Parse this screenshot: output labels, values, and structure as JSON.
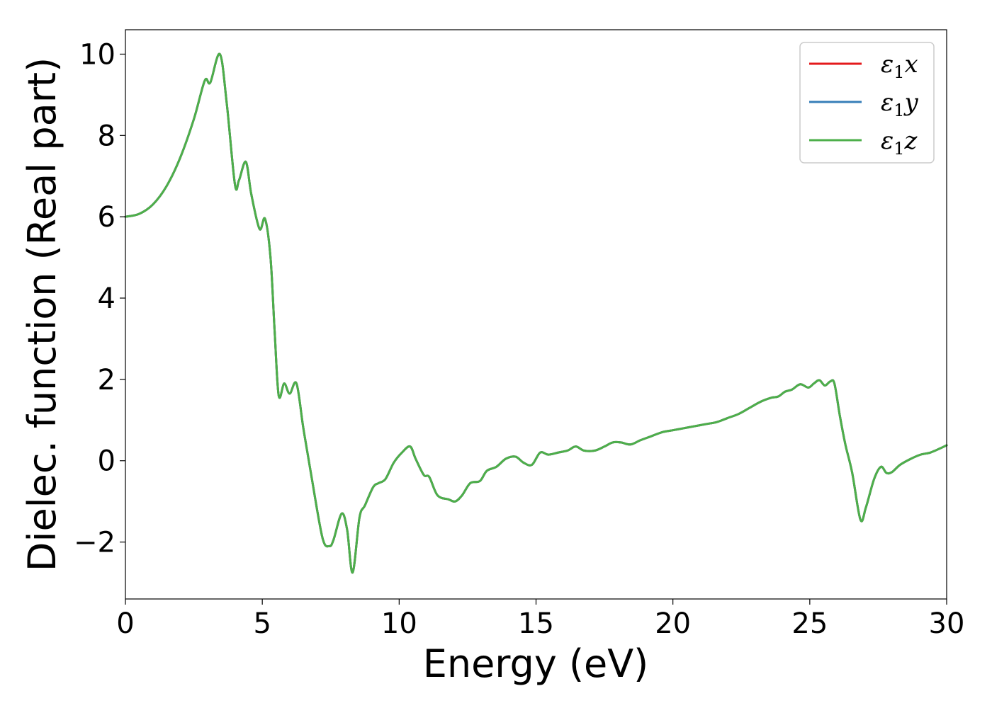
{
  "chart_data": {
    "type": "line",
    "title": "",
    "xlabel": "Energy (eV)",
    "ylabel": "Dielec. function (Real part)",
    "xlim": [
      0,
      30
    ],
    "ylim": [
      -3.4,
      10.6
    ],
    "xticks": [
      0,
      5,
      10,
      15,
      20,
      25,
      30
    ],
    "xtick_labels": [
      "0",
      "5",
      "10",
      "15",
      "20",
      "25",
      "30"
    ],
    "yticks": [
      -2,
      0,
      2,
      4,
      6,
      8,
      10
    ],
    "ytick_labels": [
      "−2",
      "0",
      "2",
      "4",
      "6",
      "8",
      "10"
    ],
    "grid": false,
    "legend_position": "top-right",
    "series": [
      {
        "name": "ε1x",
        "legend_base": "ε",
        "legend_sub": "1",
        "legend_tail": "x",
        "color": "#e41a1c",
        "x": [
          0,
          0.5,
          1.0,
          1.5,
          2.0,
          2.5,
          2.9,
          3.1,
          3.45,
          3.7,
          4.0,
          4.15,
          4.4,
          4.6,
          4.9,
          5.1,
          5.3,
          5.45,
          5.6,
          5.8,
          6.0,
          6.25,
          6.5,
          6.8,
          7.2,
          7.45,
          7.6,
          7.9,
          8.1,
          8.3,
          8.55,
          8.75,
          9.05,
          9.25,
          9.5,
          9.8,
          10.1,
          10.4,
          10.6,
          10.9,
          11.1,
          11.4,
          11.8,
          12.05,
          12.3,
          12.6,
          12.95,
          13.2,
          13.55,
          13.9,
          14.25,
          14.55,
          14.85,
          15.15,
          15.45,
          15.8,
          16.15,
          16.45,
          16.75,
          17.15,
          17.5,
          17.8,
          18.1,
          18.45,
          18.8,
          19.2,
          19.6,
          20.0,
          20.4,
          20.8,
          21.2,
          21.6,
          22.0,
          22.4,
          22.8,
          23.2,
          23.6,
          23.85,
          24.1,
          24.35,
          24.65,
          24.95,
          25.15,
          25.35,
          25.55,
          25.75,
          25.9,
          26.1,
          26.3,
          26.55,
          26.85,
          27.05,
          27.35,
          27.6,
          27.8,
          28.0,
          28.3,
          28.7,
          29.05,
          29.4,
          29.75,
          30.0
        ],
        "values": [
          6.0,
          6.07,
          6.3,
          6.75,
          7.45,
          8.4,
          9.35,
          9.3,
          10.0,
          8.8,
          6.8,
          6.9,
          7.35,
          6.55,
          5.7,
          5.95,
          5.0,
          3.2,
          1.6,
          1.9,
          1.65,
          1.9,
          0.8,
          -0.4,
          -1.9,
          -2.1,
          -1.95,
          -1.3,
          -1.7,
          -2.75,
          -1.4,
          -1.1,
          -0.65,
          -0.55,
          -0.45,
          -0.05,
          0.2,
          0.35,
          0.05,
          -0.35,
          -0.4,
          -0.85,
          -0.95,
          -1.0,
          -0.85,
          -0.55,
          -0.5,
          -0.25,
          -0.15,
          0.05,
          0.1,
          -0.05,
          -0.1,
          0.2,
          0.15,
          0.2,
          0.25,
          0.35,
          0.25,
          0.25,
          0.35,
          0.45,
          0.45,
          0.4,
          0.5,
          0.6,
          0.7,
          0.75,
          0.8,
          0.85,
          0.9,
          0.95,
          1.05,
          1.15,
          1.3,
          1.45,
          1.55,
          1.58,
          1.7,
          1.75,
          1.88,
          1.8,
          1.9,
          1.98,
          1.85,
          1.95,
          1.9,
          1.1,
          0.4,
          -0.3,
          -1.45,
          -1.15,
          -0.45,
          -0.15,
          -0.3,
          -0.28,
          -0.1,
          0.05,
          0.15,
          0.2,
          0.3,
          0.38
        ]
      },
      {
        "name": "ε1y",
        "legend_base": "ε",
        "legend_sub": "1",
        "legend_tail": "y",
        "color": "#377eb8",
        "x": [
          0,
          0.5,
          1.0,
          1.5,
          2.0,
          2.5,
          2.9,
          3.1,
          3.45,
          3.7,
          4.0,
          4.15,
          4.4,
          4.6,
          4.9,
          5.1,
          5.3,
          5.45,
          5.6,
          5.8,
          6.0,
          6.25,
          6.5,
          6.8,
          7.2,
          7.45,
          7.6,
          7.9,
          8.1,
          8.3,
          8.55,
          8.75,
          9.05,
          9.25,
          9.5,
          9.8,
          10.1,
          10.4,
          10.6,
          10.9,
          11.1,
          11.4,
          11.8,
          12.05,
          12.3,
          12.6,
          12.95,
          13.2,
          13.55,
          13.9,
          14.25,
          14.55,
          14.85,
          15.15,
          15.45,
          15.8,
          16.15,
          16.45,
          16.75,
          17.15,
          17.5,
          17.8,
          18.1,
          18.45,
          18.8,
          19.2,
          19.6,
          20.0,
          20.4,
          20.8,
          21.2,
          21.6,
          22.0,
          22.4,
          22.8,
          23.2,
          23.6,
          23.85,
          24.1,
          24.35,
          24.65,
          24.95,
          25.15,
          25.35,
          25.55,
          25.75,
          25.9,
          26.1,
          26.3,
          26.55,
          26.85,
          27.05,
          27.35,
          27.6,
          27.8,
          28.0,
          28.3,
          28.7,
          29.05,
          29.4,
          29.75,
          30.0
        ],
        "values": [
          6.0,
          6.07,
          6.3,
          6.75,
          7.45,
          8.4,
          9.35,
          9.3,
          10.0,
          8.8,
          6.8,
          6.9,
          7.35,
          6.55,
          5.7,
          5.95,
          5.0,
          3.2,
          1.6,
          1.9,
          1.65,
          1.9,
          0.8,
          -0.4,
          -1.9,
          -2.1,
          -1.95,
          -1.3,
          -1.7,
          -2.75,
          -1.4,
          -1.1,
          -0.65,
          -0.55,
          -0.45,
          -0.05,
          0.2,
          0.35,
          0.05,
          -0.35,
          -0.4,
          -0.85,
          -0.95,
          -1.0,
          -0.85,
          -0.55,
          -0.5,
          -0.25,
          -0.15,
          0.05,
          0.1,
          -0.05,
          -0.1,
          0.2,
          0.15,
          0.2,
          0.25,
          0.35,
          0.25,
          0.25,
          0.35,
          0.45,
          0.45,
          0.4,
          0.5,
          0.6,
          0.7,
          0.75,
          0.8,
          0.85,
          0.9,
          0.95,
          1.05,
          1.15,
          1.3,
          1.45,
          1.55,
          1.58,
          1.7,
          1.75,
          1.88,
          1.8,
          1.9,
          1.98,
          1.85,
          1.95,
          1.9,
          1.1,
          0.4,
          -0.3,
          -1.45,
          -1.15,
          -0.45,
          -0.15,
          -0.3,
          -0.28,
          -0.1,
          0.05,
          0.15,
          0.2,
          0.3,
          0.38
        ]
      },
      {
        "name": "ε1z",
        "legend_base": "ε",
        "legend_sub": "1",
        "legend_tail": "z",
        "color": "#4daf4a",
        "x": [
          0,
          0.5,
          1.0,
          1.5,
          2.0,
          2.5,
          2.9,
          3.1,
          3.45,
          3.7,
          4.0,
          4.15,
          4.4,
          4.6,
          4.9,
          5.1,
          5.3,
          5.45,
          5.6,
          5.8,
          6.0,
          6.25,
          6.5,
          6.8,
          7.2,
          7.45,
          7.6,
          7.9,
          8.1,
          8.3,
          8.55,
          8.75,
          9.05,
          9.25,
          9.5,
          9.8,
          10.1,
          10.4,
          10.6,
          10.9,
          11.1,
          11.4,
          11.8,
          12.05,
          12.3,
          12.6,
          12.95,
          13.2,
          13.55,
          13.9,
          14.25,
          14.55,
          14.85,
          15.15,
          15.45,
          15.8,
          16.15,
          16.45,
          16.75,
          17.15,
          17.5,
          17.8,
          18.1,
          18.45,
          18.8,
          19.2,
          19.6,
          20.0,
          20.4,
          20.8,
          21.2,
          21.6,
          22.0,
          22.4,
          22.8,
          23.2,
          23.6,
          23.85,
          24.1,
          24.35,
          24.65,
          24.95,
          25.15,
          25.35,
          25.55,
          25.75,
          25.9,
          26.1,
          26.3,
          26.55,
          26.85,
          27.05,
          27.35,
          27.6,
          27.8,
          28.0,
          28.3,
          28.7,
          29.05,
          29.4,
          29.75,
          30.0
        ],
        "values": [
          6.0,
          6.07,
          6.3,
          6.75,
          7.45,
          8.4,
          9.35,
          9.3,
          10.0,
          8.8,
          6.8,
          6.9,
          7.35,
          6.55,
          5.7,
          5.95,
          5.0,
          3.2,
          1.6,
          1.9,
          1.65,
          1.9,
          0.8,
          -0.4,
          -1.9,
          -2.1,
          -1.95,
          -1.3,
          -1.7,
          -2.75,
          -1.4,
          -1.1,
          -0.65,
          -0.55,
          -0.45,
          -0.05,
          0.2,
          0.35,
          0.05,
          -0.35,
          -0.4,
          -0.85,
          -0.95,
          -1.0,
          -0.85,
          -0.55,
          -0.5,
          -0.25,
          -0.15,
          0.05,
          0.1,
          -0.05,
          -0.1,
          0.2,
          0.15,
          0.2,
          0.25,
          0.35,
          0.25,
          0.25,
          0.35,
          0.45,
          0.45,
          0.4,
          0.5,
          0.6,
          0.7,
          0.75,
          0.8,
          0.85,
          0.9,
          0.95,
          1.05,
          1.15,
          1.3,
          1.45,
          1.55,
          1.58,
          1.7,
          1.75,
          1.88,
          1.8,
          1.9,
          1.98,
          1.85,
          1.95,
          1.9,
          1.1,
          0.4,
          -0.3,
          -1.45,
          -1.15,
          -0.45,
          -0.15,
          -0.3,
          -0.28,
          -0.1,
          0.05,
          0.15,
          0.2,
          0.3,
          0.38
        ]
      }
    ]
  }
}
